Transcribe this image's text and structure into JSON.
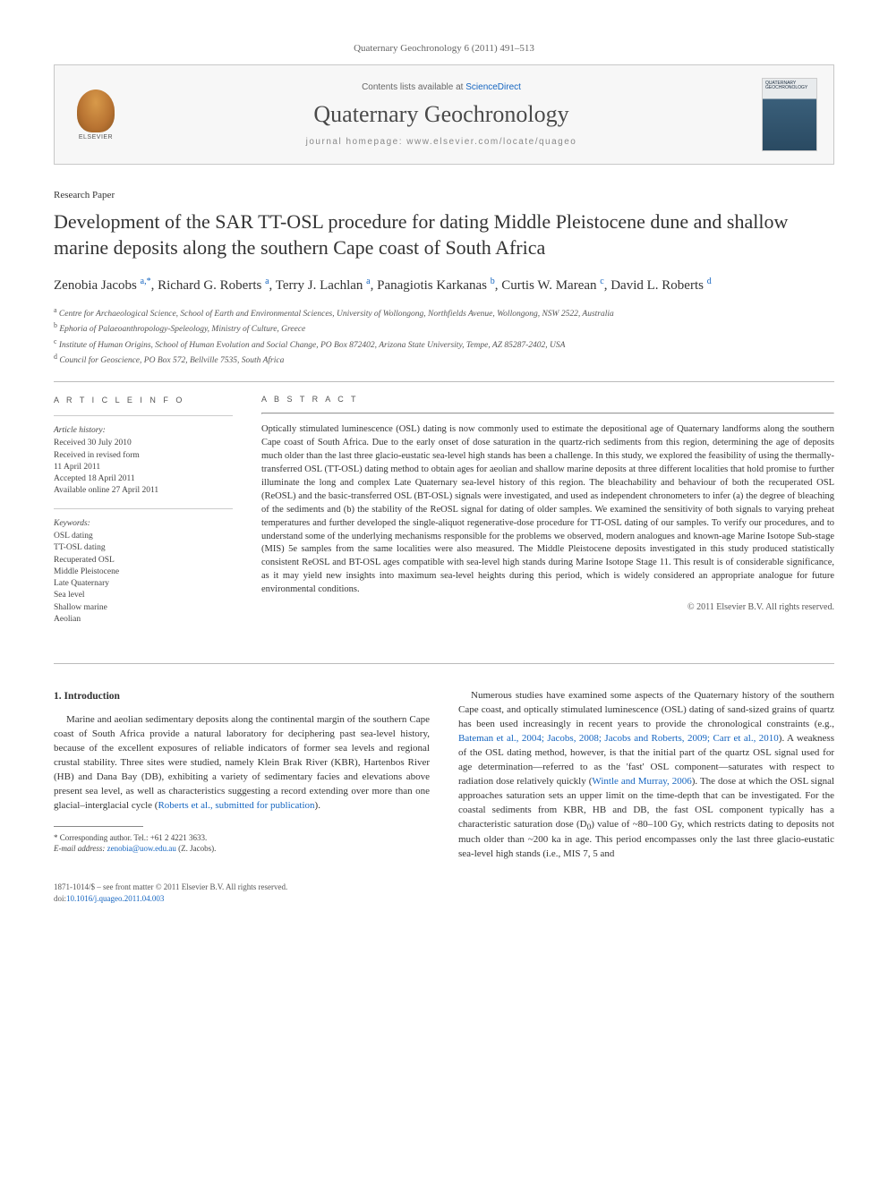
{
  "journal_ref": "Quaternary Geochronology 6 (2011) 491–513",
  "header": {
    "elsevier_label": "ELSEVIER",
    "contents_prefix": "Contents lists available at ",
    "contents_link": "ScienceDirect",
    "journal_name": "Quaternary Geochronology",
    "homepage_prefix": "journal homepage: ",
    "homepage_link": "www.elsevier.com/locate/quageo",
    "cover_label": "QUATERNARY GEOCHRONOLOGY"
  },
  "paper_type": "Research Paper",
  "title": "Development of the SAR TT-OSL procedure for dating Middle Pleistocene dune and shallow marine deposits along the southern Cape coast of South Africa",
  "authors_html": "Zenobia Jacobs <sup>a,*</sup>, Richard G. Roberts <sup>a</sup>, Terry J. Lachlan <sup>a</sup>, Panagiotis Karkanas <sup>b</sup>, Curtis W. Marean <sup>c</sup>, David L. Roberts <sup>d</sup>",
  "affiliations": {
    "a": "Centre for Archaeological Science, School of Earth and Environmental Sciences, University of Wollongong, Northfields Avenue, Wollongong, NSW 2522, Australia",
    "b": "Ephoria of Palaeoanthropology-Speleology, Ministry of Culture, Greece",
    "c": "Institute of Human Origins, School of Human Evolution and Social Change, PO Box 872402, Arizona State University, Tempe, AZ 85287-2402, USA",
    "d": "Council for Geoscience, PO Box 572, Bellville 7535, South Africa"
  },
  "article_info": {
    "heading": "A R T I C L E   I N F O",
    "history_label": "Article history:",
    "history": [
      "Received 30 July 2010",
      "Received in revised form",
      "11 April 2011",
      "Accepted 18 April 2011",
      "Available online 27 April 2011"
    ],
    "keywords_label": "Keywords:",
    "keywords": [
      "OSL dating",
      "TT-OSL dating",
      "Recuperated OSL",
      "Middle Pleistocene",
      "Late Quaternary",
      "Sea level",
      "Shallow marine",
      "Aeolian"
    ]
  },
  "abstract": {
    "heading": "A B S T R A C T",
    "text": "Optically stimulated luminescence (OSL) dating is now commonly used to estimate the depositional age of Quaternary landforms along the southern Cape coast of South Africa. Due to the early onset of dose saturation in the quartz-rich sediments from this region, determining the age of deposits much older than the last three glacio-eustatic sea-level high stands has been a challenge. In this study, we explored the feasibility of using the thermally-transferred OSL (TT-OSL) dating method to obtain ages for aeolian and shallow marine deposits at three different localities that hold promise to further illuminate the long and complex Late Quaternary sea-level history of this region. The bleachability and behaviour of both the recuperated OSL (ReOSL) and the basic-transferred OSL (BT-OSL) signals were investigated, and used as independent chronometers to infer (a) the degree of bleaching of the sediments and (b) the stability of the ReOSL signal for dating of older samples. We examined the sensitivity of both signals to varying preheat temperatures and further developed the single-aliquot regenerative-dose procedure for TT-OSL dating of our samples. To verify our procedures, and to understand some of the underlying mechanisms responsible for the problems we observed, modern analogues and known-age Marine Isotope Sub-stage (MIS) 5e samples from the same localities were also measured. The Middle Pleistocene deposits investigated in this study produced statistically consistent ReOSL and BT-OSL ages compatible with sea-level high stands during Marine Isotope Stage 11. This result is of considerable significance, as it may yield new insights into maximum sea-level heights during this period, which is widely considered an appropriate analogue for future environmental conditions.",
    "copyright": "© 2011 Elsevier B.V. All rights reserved."
  },
  "section1": {
    "heading": "1. Introduction",
    "para1_pre": "Marine and aeolian sedimentary deposits along the continental margin of the southern Cape coast of South Africa provide a natural laboratory for deciphering past sea-level history, because of the excellent exposures of reliable indicators of former sea levels and regional crustal stability. Three sites were studied, namely Klein Brak River (KBR), Hartenbos River (HB) and Dana Bay (DB), exhibiting a variety of sedimentary facies and elevations above present sea level, as well as characteristics suggesting a record extending over more than one glacial–interglacial cycle (",
    "para1_ref": "Roberts et al., submitted for publication",
    "para1_post": ").",
    "para2_pre": "Numerous studies have examined some aspects of the Quaternary history of the southern Cape coast, and optically stimulated luminescence (OSL) dating of sand-sized grains of quartz has been used increasingly in recent years to provide the chronological constraints (e.g., ",
    "para2_ref1": "Bateman et al., 2004; Jacobs, 2008; Jacobs and Roberts, 2009; Carr et al., 2010",
    "para2_mid1": "). A weakness of the OSL dating method, however, is that the initial part of the quartz OSL signal used for age determination—referred to as the 'fast' OSL component—saturates with respect to radiation dose relatively quickly (",
    "para2_ref2": "Wintle and Murray, 2006",
    "para2_mid2": "). The dose at which the OSL signal approaches saturation sets an upper limit on the time-depth that can be investigated. For the coastal sediments from KBR, HB and DB, the fast OSL component typically has a characteristic saturation dose (D",
    "para2_sub": "0",
    "para2_post": ") value of ~80–100 Gy, which restricts dating to deposits not much older than ~200 ka in age. This period encompasses only the last three glacio-eustatic sea-level high stands (i.e., MIS 7, 5 and"
  },
  "footnotes": {
    "corr": "* Corresponding author. Tel.: +61 2 4221 3633.",
    "email_label": "E-mail address: ",
    "email": "zenobia@uow.edu.au",
    "email_who": " (Z. Jacobs)."
  },
  "footer": {
    "line1": "1871-1014/$ – see front matter © 2011 Elsevier B.V. All rights reserved.",
    "doi_label": "doi:",
    "doi": "10.1016/j.quageo.2011.04.003"
  },
  "colors": {
    "link": "#1565c0",
    "text": "#333333",
    "muted": "#666666",
    "rule": "#bbbbbb",
    "header_bg": "#f7f7f7"
  }
}
